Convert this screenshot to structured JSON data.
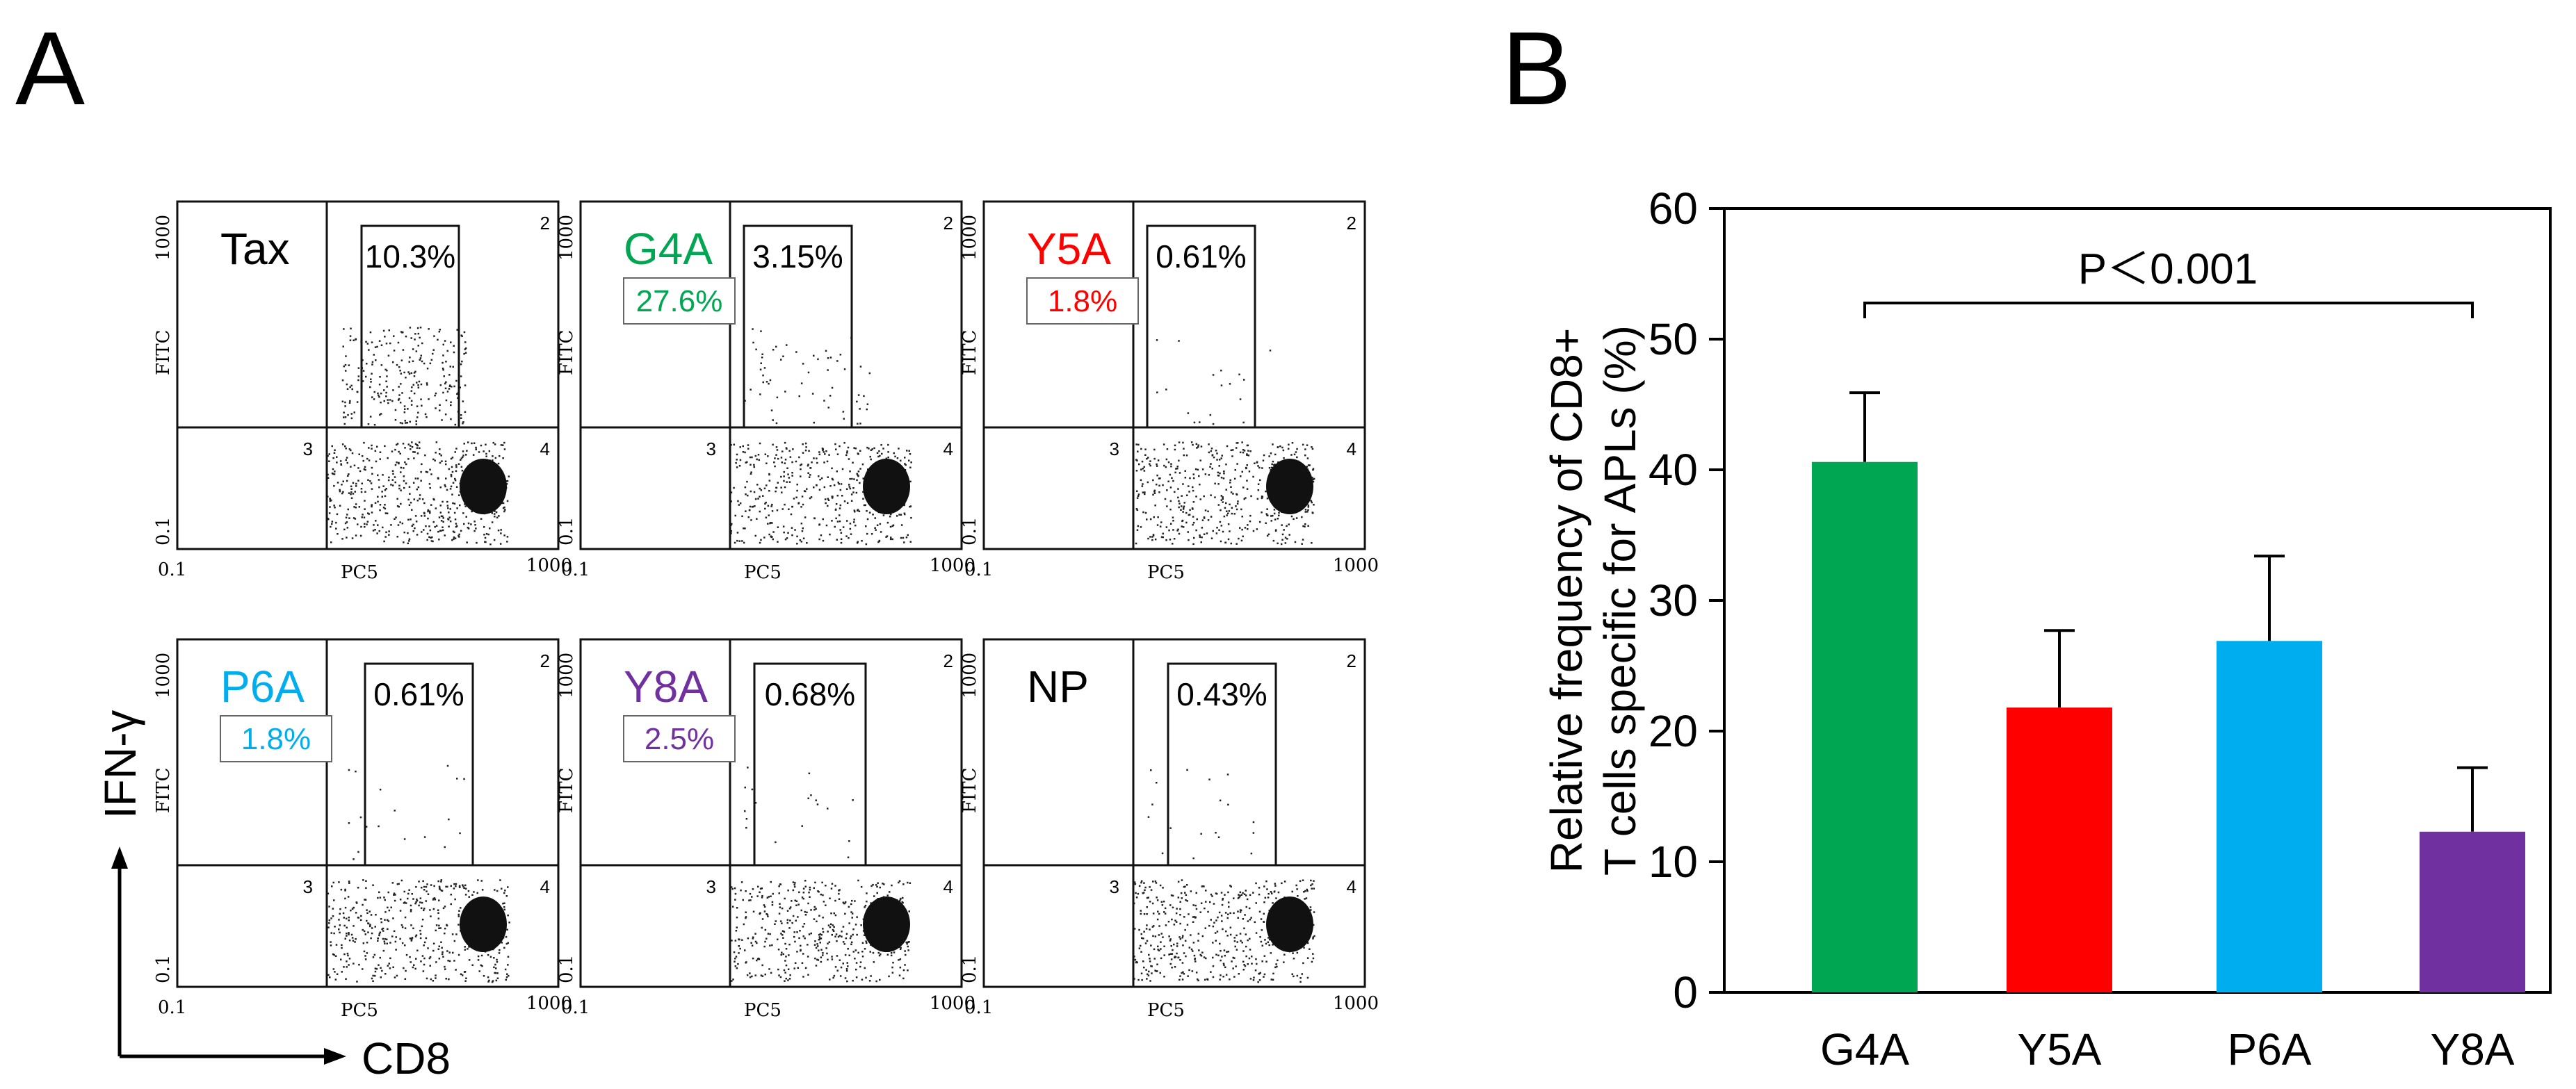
{
  "panel_a": {
    "letter": "A",
    "y_axis_label": "IFN-γ",
    "x_axis_label": "CD8",
    "plot_axis_y": "FITC",
    "plot_axis_x": "PC5",
    "tick_min": "0.1",
    "tick_max": "1000",
    "quadrant_labels": [
      "2",
      "3",
      "4"
    ],
    "plots": [
      {
        "name": "Tax",
        "color": "#000000",
        "percent": "10.3%",
        "relative": ""
      },
      {
        "name": "G4A",
        "color": "#00A651",
        "percent": "3.15%",
        "relative": "27.6%"
      },
      {
        "name": "Y5A",
        "color": "#FF0000",
        "percent": "0.61%",
        "relative": "1.8%"
      },
      {
        "name": "P6A",
        "color": "#00AEEF",
        "percent": "0.61%",
        "relative": "1.8%"
      },
      {
        "name": "Y8A",
        "color": "#7030A0",
        "percent": "0.68%",
        "relative": "2.5%"
      },
      {
        "name": "NP",
        "color": "#000000",
        "percent": "0.43%",
        "relative": ""
      }
    ]
  },
  "chart_data": {
    "letter": "B",
    "type": "bar",
    "categories": [
      "G4A",
      "Y5A",
      "P6A",
      "Y8A"
    ],
    "values": [
      40.6,
      21.8,
      26.9,
      12.3
    ],
    "errors": [
      5.3,
      5.9,
      6.5,
      4.9
    ],
    "colors": [
      "#00A651",
      "#FF0000",
      "#00AEEF",
      "#7030A0"
    ],
    "ylabel_line1": "Relative frequency of CD8+",
    "ylabel_line2": "T cells specific for APLs (%)",
    "ylim": [
      0,
      60
    ],
    "yticks": [
      0,
      10,
      20,
      30,
      40,
      50,
      60
    ],
    "annotation": "P＜0.001"
  }
}
